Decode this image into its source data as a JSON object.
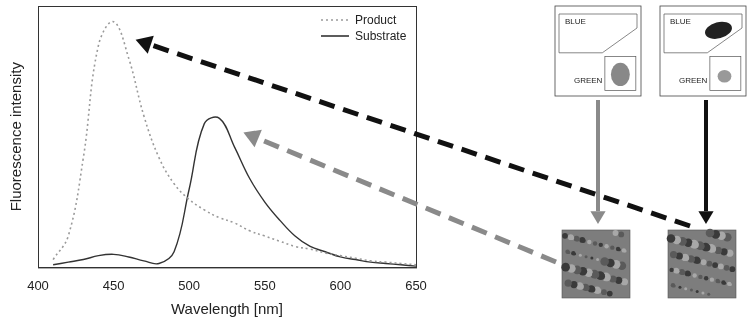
{
  "chart_data": {
    "type": "line",
    "x_label": "Wavelength [nm]",
    "y_label": "Fluorescence intensity",
    "x": [
      410,
      420,
      430,
      440,
      450,
      460,
      470,
      480,
      490,
      500,
      510,
      520,
      530,
      540,
      550,
      560,
      570,
      580,
      590,
      600,
      610,
      620,
      630,
      640,
      650
    ],
    "series": [
      {
        "name": "Product",
        "color": "#9a9a9a",
        "line_style": "dotted",
        "values": [
          3,
          12,
          42,
          85,
          94,
          80,
          58,
          42,
          32,
          26,
          22,
          19,
          17,
          14,
          12,
          10,
          8,
          7,
          5.5,
          4.5,
          3.5,
          2.5,
          2,
          1.5,
          1
        ]
      },
      {
        "name": "Substrate",
        "color": "#333333",
        "line_style": "solid",
        "values": [
          1,
          2,
          3,
          4.5,
          5,
          4,
          2.5,
          1.5,
          6,
          30,
          55,
          57,
          46,
          34,
          25,
          18,
          12,
          8,
          6,
          4,
          3,
          2,
          1.5,
          1,
          0.5
        ]
      }
    ],
    "xlim": [
      400,
      650
    ],
    "xticks": [
      400,
      450,
      500,
      550,
      600,
      650
    ],
    "ylim": [
      0,
      100
    ],
    "tick_labels": "x",
    "grid": false,
    "legend": "upper right"
  },
  "flow_plots": [
    {
      "gates": [
        "BLUE",
        "GREEN"
      ]
    },
    {
      "gates": [
        "BLUE",
        "GREEN"
      ]
    }
  ]
}
